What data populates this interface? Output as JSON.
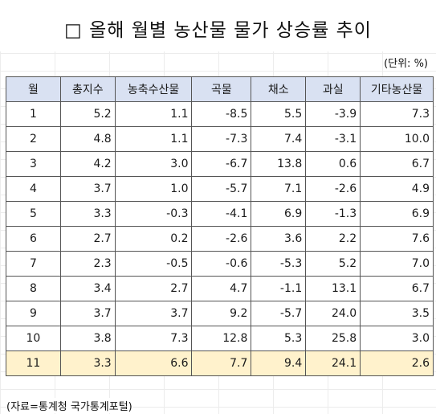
{
  "title": "□ 올해 월별 농산물 물가 상승률 추이",
  "unit": "(단위: %)",
  "source": "(자료=통계청 국가통계포털)",
  "columns": [
    "월",
    "총지수",
    "농축수산물",
    "곡물",
    "채소",
    "과실",
    "기타농산물"
  ],
  "rows": [
    [
      "1",
      "5.2",
      "1.1",
      "-8.5",
      "5.5",
      "-3.9",
      "7.3"
    ],
    [
      "2",
      "4.8",
      "1.1",
      "-7.3",
      "7.4",
      "-3.1",
      "10.0"
    ],
    [
      "3",
      "4.2",
      "3.0",
      "-6.7",
      "13.8",
      "0.6",
      "6.7"
    ],
    [
      "4",
      "3.7",
      "1.0",
      "-5.7",
      "7.1",
      "-2.6",
      "4.9"
    ],
    [
      "5",
      "3.3",
      "-0.3",
      "-4.1",
      "6.9",
      "-1.3",
      "6.9"
    ],
    [
      "6",
      "2.7",
      "0.2",
      "-2.6",
      "3.6",
      "2.2",
      "7.6"
    ],
    [
      "7",
      "2.3",
      "-0.5",
      "-0.6",
      "-5.3",
      "5.2",
      "7.0"
    ],
    [
      "8",
      "3.4",
      "2.7",
      "4.7",
      "-1.1",
      "13.1",
      "6.7"
    ],
    [
      "9",
      "3.7",
      "3.7",
      "9.2",
      "-5.7",
      "24.0",
      "3.5"
    ],
    [
      "10",
      "3.8",
      "7.3",
      "12.8",
      "5.3",
      "25.8",
      "3.0"
    ],
    [
      "11",
      "3.3",
      "6.6",
      "7.7",
      "9.4",
      "24.1",
      "2.6"
    ]
  ],
  "highlight_row": 10,
  "colors": {
    "header_bg": "#d9e1f2",
    "highlight_bg": "#fff2cc"
  }
}
